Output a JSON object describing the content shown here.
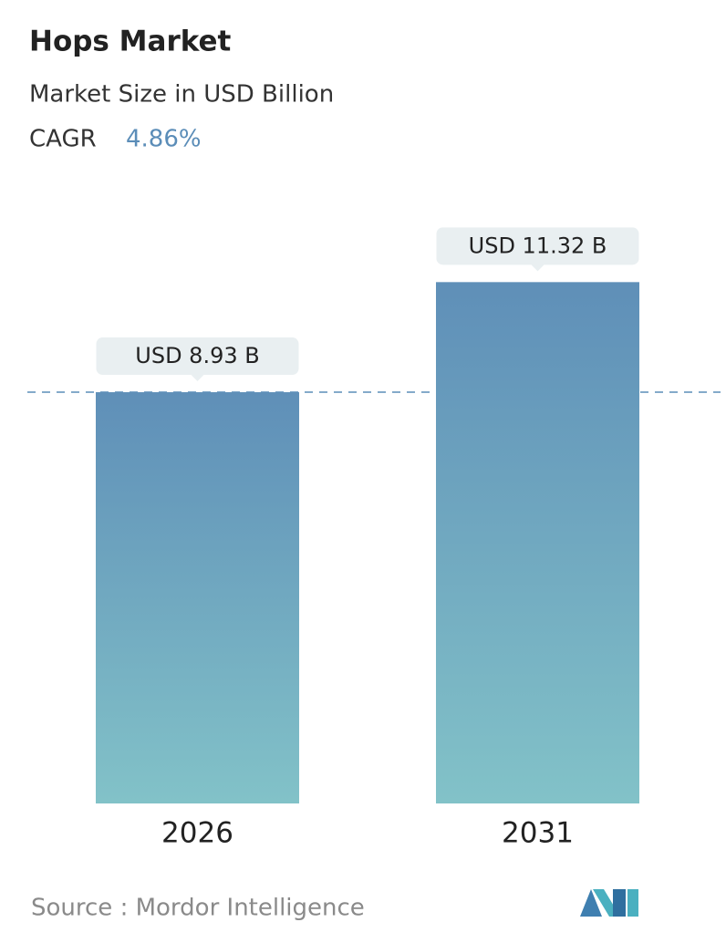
{
  "chart_data": {
    "type": "bar",
    "title": "Hops Market",
    "subtitle": "Market Size in USD Billion",
    "cagr_label": "CAGR",
    "cagr_value": "4.86%",
    "categories": [
      "2026",
      "2031"
    ],
    "values": [
      8.93,
      11.32
    ],
    "value_labels": [
      "USD 8.93 B",
      "USD 11.32 B"
    ],
    "color_top": "#5f8fb8",
    "color_bottom": "#82c2c8",
    "source": "Source :  Mordor Intelligence"
  }
}
